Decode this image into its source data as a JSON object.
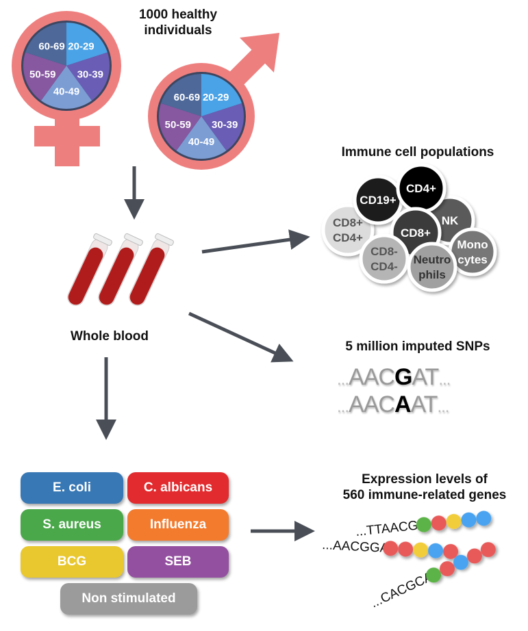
{
  "title_individuals": "1000 healthy individuals",
  "age_groups": [
    "20-29",
    "30-39",
    "40-49",
    "50-59",
    "60-69"
  ],
  "age_colors": [
    "#4aa3e6",
    "#6a5db5",
    "#7b9dd4",
    "#8757a0",
    "#4d6899"
  ],
  "symbol_color": "#ee7f7f",
  "whole_blood": "Whole blood",
  "immune_title": "Immune cell populations",
  "cells": [
    {
      "label": "CD8+",
      "label2": "CD4+",
      "fill": "#dcdcdc",
      "text": "#555"
    },
    {
      "label": "CD19+",
      "fill": "#1e1e1e",
      "text": "#fff"
    },
    {
      "label": "NK",
      "fill": "#5a5a5a",
      "text": "#fff"
    },
    {
      "label": "CD4+",
      "fill": "#000000",
      "text": "#fff"
    },
    {
      "label": "CD8+",
      "fill": "#3a3a3a",
      "text": "#fff"
    },
    {
      "label": "CD8-",
      "label2": "CD4-",
      "fill": "#b5b5b5",
      "text": "#555"
    },
    {
      "label": "Mono",
      "label2": "cytes",
      "fill": "#777777",
      "text": "#fff"
    },
    {
      "label": "Neutro",
      "label2": "phils",
      "fill": "#a0a0a0",
      "text": "#333"
    }
  ],
  "snp_title": "5 million imputed SNPs",
  "snps": [
    {
      "prefix": "...",
      "before": "AAC",
      "variant": "G",
      "after": "AT",
      "suffix": "..."
    },
    {
      "prefix": "...",
      "before": "AAC",
      "variant": "A",
      "after": "AT",
      "suffix": "..."
    }
  ],
  "stimuli": [
    {
      "label": "E. coli",
      "color": "#3878b4"
    },
    {
      "label": "C. albicans",
      "color": "#e12b2e"
    },
    {
      "label": "S. aureus",
      "color": "#4aa84a"
    },
    {
      "label": "Influenza",
      "color": "#f27b2e"
    },
    {
      "label": "BCG",
      "color": "#e9c72e"
    },
    {
      "label": "SEB",
      "color": "#9450a0"
    },
    {
      "label": "Non stimulated",
      "color": "#9b9b9b"
    }
  ],
  "expression_title": "Expression levels of 560 immune-related genes",
  "expression_title_l1": "Expression levels of",
  "expression_title_l2": "560 immune-related genes",
  "sequences": [
    {
      "text": "...TTAACGG",
      "beads": [
        "#5cb347",
        "#e85a5a",
        "#f2cd3a",
        "#4aa3f0",
        "#4aa3f0"
      ]
    },
    {
      "text": "...AACGGAT",
      "beads": [
        "#e85a5a",
        "#e85a5a",
        "#f2cd3a",
        "#4aa3f0",
        "#e85a5a"
      ]
    },
    {
      "text": "...CACGCAA",
      "beads": [
        "#5cb347",
        "#e85a5a",
        "#4aa3f0",
        "#e85a5a",
        "#e85a5a"
      ]
    }
  ]
}
